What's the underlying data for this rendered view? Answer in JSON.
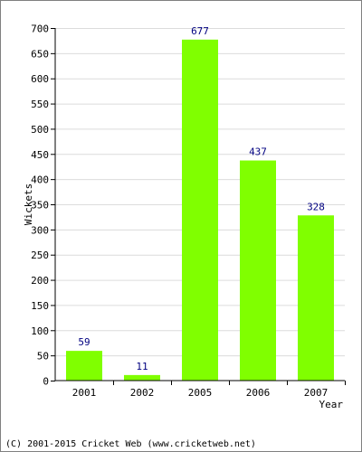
{
  "chart_data": {
    "type": "bar",
    "categories": [
      "2001",
      "2002",
      "2005",
      "2006",
      "2007"
    ],
    "values": [
      59,
      11,
      677,
      437,
      328
    ],
    "xlabel": "Year",
    "ylabel": "Wickets",
    "ylim": [
      0,
      700
    ],
    "yticks": [
      0,
      50,
      100,
      150,
      200,
      250,
      300,
      350,
      400,
      450,
      500,
      550,
      600,
      650,
      700
    ],
    "grid": true,
    "data_labels": true,
    "bar_color": "#80ff00",
    "label_color": "#000080"
  },
  "footer": "(C) 2001-2015 Cricket Web (www.cricketweb.net)"
}
